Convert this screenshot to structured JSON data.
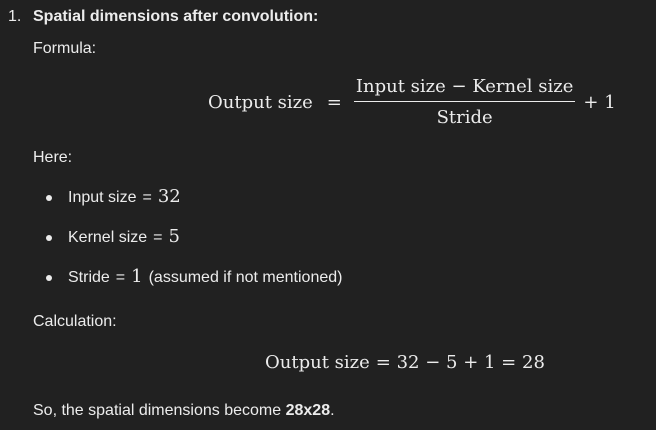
{
  "heading": {
    "number": "1.",
    "title": "Spatial dimensions after convolution:"
  },
  "formula_label": "Formula:",
  "formula": {
    "lhs": "Output size",
    "equals": "=",
    "numerator": "Input size − Kernel size",
    "denominator": "Stride",
    "plus_term": "+ 1"
  },
  "here_label": "Here:",
  "bullets": [
    {
      "name": "Input size",
      "eq": "=",
      "value": "32",
      "note": ""
    },
    {
      "name": "Kernel size",
      "eq": "=",
      "value": "5",
      "note": ""
    },
    {
      "name": "Stride",
      "eq": "=",
      "value": "1",
      "note": "(assumed if not mentioned)"
    }
  ],
  "calculation_label": "Calculation:",
  "calculation": {
    "lhs": "Output size",
    "expr": "= 32 − 5 + 1 = 28"
  },
  "conclusion": {
    "prefix": "So, the spatial dimensions become ",
    "result": "28x28",
    "suffix": "."
  }
}
